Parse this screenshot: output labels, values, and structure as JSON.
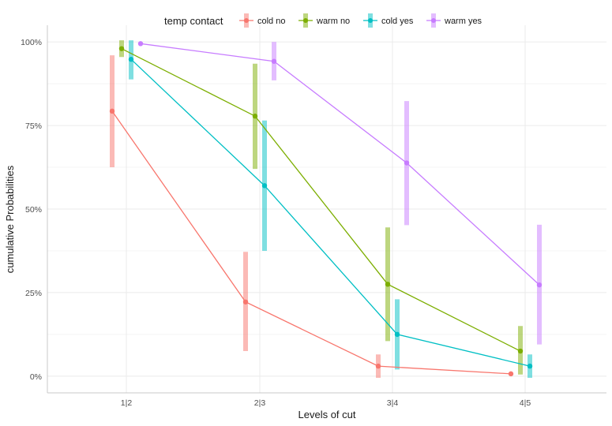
{
  "chart_data": {
    "type": "line",
    "title": "",
    "xlabel": "Levels of cut",
    "ylabel": "cumulative Probabilities",
    "categories": [
      "1|2",
      "2|3",
      "3|4",
      "4|5"
    ],
    "ylim": [
      -0.05,
      1.05
    ],
    "yticks": [
      0,
      0.25,
      0.5,
      0.75,
      1.0
    ],
    "ytick_labels": [
      "0%",
      "25%",
      "50%",
      "75%",
      "100%"
    ],
    "legend_title": "temp contact",
    "legend_position": "top",
    "series": [
      {
        "name": "cold no",
        "color": "#F8766D",
        "values": [
          0.793,
          0.222,
          0.03,
          0.007
        ],
        "lower": [
          0.625,
          0.075,
          -0.005,
          null
        ],
        "upper": [
          0.96,
          0.372,
          0.065,
          null
        ]
      },
      {
        "name": "warm no",
        "color": "#7CAE00",
        "values": [
          0.98,
          0.778,
          0.275,
          0.075
        ],
        "lower": [
          0.955,
          0.62,
          0.105,
          0.005
        ],
        "upper": [
          1.005,
          0.935,
          0.445,
          0.15
        ]
      },
      {
        "name": "cold yes",
        "color": "#00BFC4",
        "values": [
          0.948,
          0.57,
          0.125,
          0.03
        ],
        "lower": [
          0.888,
          0.375,
          0.02,
          -0.005
        ],
        "upper": [
          1.005,
          0.765,
          0.23,
          0.065
        ]
      },
      {
        "name": "warm yes",
        "color": "#C77CFF",
        "values": [
          0.995,
          0.942,
          0.638,
          0.273
        ],
        "lower": [
          null,
          0.885,
          0.452,
          0.095
        ],
        "upper": [
          null,
          1.0,
          0.823,
          0.453
        ]
      }
    ]
  }
}
